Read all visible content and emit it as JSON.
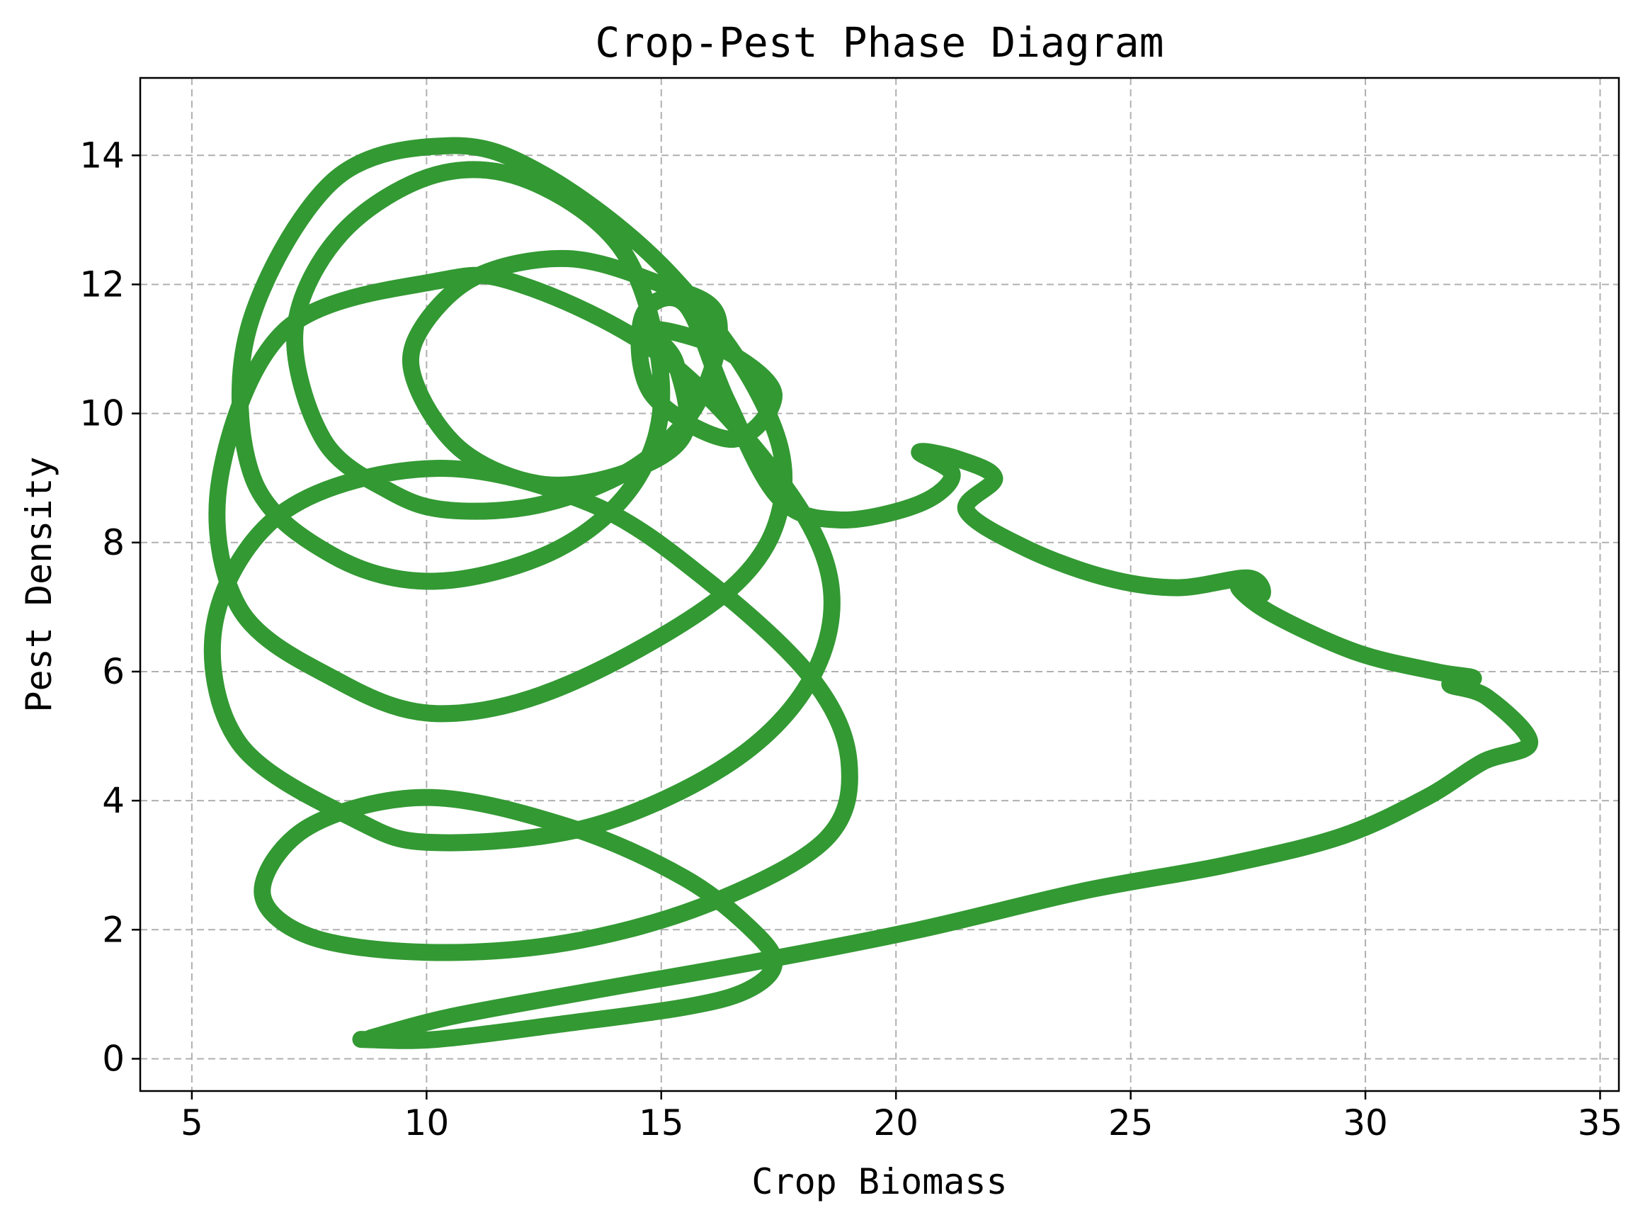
{
  "chart_data": {
    "type": "line",
    "title": "Crop-Pest Phase Diagram",
    "xlabel": "Crop Biomass",
    "ylabel": "Pest Density",
    "xlim": [
      3.9,
      35.4
    ],
    "ylim": [
      -0.5,
      15.2
    ],
    "xticks": [
      5,
      10,
      15,
      20,
      25,
      30,
      35
    ],
    "yticks": [
      0,
      2,
      4,
      6,
      8,
      10,
      12,
      14
    ],
    "grid": true,
    "color": "#339933",
    "series": [
      {
        "name": "",
        "points": [
          [
            8.6,
            0.3
          ],
          [
            10.2,
            0.3
          ],
          [
            13.0,
            0.55
          ],
          [
            15.5,
            0.8
          ],
          [
            16.8,
            1.05
          ],
          [
            17.4,
            1.45
          ],
          [
            17.0,
            1.95
          ],
          [
            15.5,
            2.8
          ],
          [
            13.0,
            3.6
          ],
          [
            10.0,
            4.05
          ],
          [
            7.5,
            3.6
          ],
          [
            6.5,
            2.6
          ],
          [
            7.5,
            1.9
          ],
          [
            10.0,
            1.65
          ],
          [
            13.0,
            1.8
          ],
          [
            16.0,
            2.4
          ],
          [
            18.5,
            3.4
          ],
          [
            19.0,
            4.6
          ],
          [
            18.2,
            5.9
          ],
          [
            16.0,
            7.4
          ],
          [
            13.5,
            8.6
          ],
          [
            10.2,
            9.15
          ],
          [
            7.0,
            8.5
          ],
          [
            5.5,
            6.8
          ],
          [
            6.0,
            4.9
          ],
          [
            8.5,
            3.7
          ],
          [
            10.2,
            3.35
          ],
          [
            13.5,
            3.6
          ],
          [
            16.5,
            4.6
          ],
          [
            18.2,
            5.9
          ],
          [
            18.6,
            7.4
          ],
          [
            17.5,
            9.0
          ],
          [
            15.0,
            10.9
          ],
          [
            12.0,
            12.0
          ],
          [
            10.2,
            12.05
          ],
          [
            7.0,
            11.3
          ],
          [
            5.6,
            9.0
          ],
          [
            6.0,
            7.0
          ],
          [
            8.0,
            5.9
          ],
          [
            10.2,
            5.35
          ],
          [
            13.0,
            5.8
          ],
          [
            16.5,
            7.3
          ],
          [
            17.6,
            8.8
          ],
          [
            17.0,
            10.4
          ],
          [
            15.0,
            12.3
          ],
          [
            12.5,
            13.7
          ],
          [
            10.5,
            14.15
          ],
          [
            8.0,
            13.6
          ],
          [
            6.2,
            11.3
          ],
          [
            6.3,
            9.0
          ],
          [
            8.0,
            7.8
          ],
          [
            10.2,
            7.4
          ],
          [
            12.8,
            7.9
          ],
          [
            14.5,
            9.0
          ],
          [
            15.0,
            10.5
          ],
          [
            14.2,
            12.5
          ],
          [
            12.2,
            13.6
          ],
          [
            10.2,
            13.7
          ],
          [
            8.2,
            12.8
          ],
          [
            7.2,
            11.3
          ],
          [
            7.8,
            9.6
          ],
          [
            9.2,
            8.8
          ],
          [
            10.5,
            8.5
          ],
          [
            12.5,
            8.6
          ],
          [
            14.5,
            9.2
          ],
          [
            15.8,
            10.2
          ],
          [
            16.2,
            11.5
          ],
          [
            15.0,
            12.0
          ],
          [
            13.0,
            12.4
          ],
          [
            11.0,
            12.1
          ],
          [
            9.8,
            11.2
          ],
          [
            9.8,
            10.4
          ],
          [
            10.8,
            9.4
          ],
          [
            12.5,
            8.9
          ],
          [
            14.3,
            9.1
          ],
          [
            15.5,
            9.7
          ],
          [
            15.3,
            10.8
          ],
          [
            14.8,
            11.3
          ],
          [
            16.3,
            11.0
          ],
          [
            17.4,
            10.3
          ],
          [
            16.5,
            9.6
          ],
          [
            14.8,
            10.3
          ],
          [
            14.6,
            11.5
          ],
          [
            15.5,
            11.7
          ],
          [
            16.4,
            10.2
          ],
          [
            17.5,
            8.7
          ],
          [
            18.8,
            8.35
          ],
          [
            20.5,
            8.6
          ],
          [
            21.2,
            9.05
          ],
          [
            20.5,
            9.4
          ],
          [
            21.3,
            9.3
          ],
          [
            22.1,
            9.0
          ],
          [
            21.5,
            8.5
          ],
          [
            22.8,
            7.9
          ],
          [
            24.5,
            7.45
          ],
          [
            26.0,
            7.3
          ],
          [
            27.5,
            7.45
          ],
          [
            27.8,
            7.2
          ],
          [
            27.3,
            7.3
          ],
          [
            28.0,
            6.9
          ],
          [
            29.8,
            6.3
          ],
          [
            31.5,
            6.0
          ],
          [
            32.3,
            5.9
          ],
          [
            31.8,
            5.8
          ],
          [
            32.6,
            5.6
          ],
          [
            33.5,
            4.9
          ],
          [
            32.5,
            4.6
          ],
          [
            31.3,
            4.05
          ],
          [
            29.5,
            3.45
          ],
          [
            27.0,
            3.0
          ],
          [
            24.0,
            2.6
          ],
          [
            20.5,
            2.0
          ],
          [
            17.0,
            1.5
          ],
          [
            13.5,
            1.05
          ],
          [
            10.5,
            0.65
          ],
          [
            8.8,
            0.32
          ]
        ]
      }
    ]
  }
}
